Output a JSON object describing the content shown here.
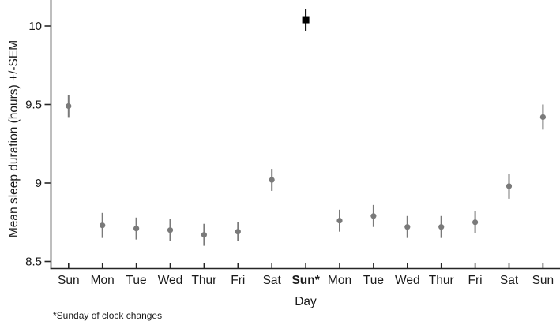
{
  "chart_data": {
    "type": "scatter",
    "title": "",
    "xlabel": "Day",
    "ylabel": "Mean sleep duration (hours) +/-SEM",
    "footnote": "*Sunday of clock changes",
    "y_ticks": [
      8.5,
      9,
      9.5,
      10
    ],
    "y_tick_labels": [
      "8.5",
      "9",
      "9.5",
      "10"
    ],
    "ylim": [
      8.45,
      10.17
    ],
    "grid": false,
    "legend": "none",
    "categories": [
      "Sun",
      "Mon",
      "Tue",
      "Wed",
      "Thur",
      "Fri",
      "Sat",
      "Sun*",
      "Mon",
      "Tue",
      "Wed",
      "Thur",
      "Fri",
      "Sat",
      "Sun"
    ],
    "series": [
      {
        "name": "Mean sleep duration +/- SEM",
        "points": [
          {
            "day": "Sun",
            "mean": 9.49,
            "sem": 0.07,
            "highlight": false
          },
          {
            "day": "Mon",
            "mean": 8.73,
            "sem": 0.08,
            "highlight": false
          },
          {
            "day": "Tue",
            "mean": 8.71,
            "sem": 0.07,
            "highlight": false
          },
          {
            "day": "Wed",
            "mean": 8.7,
            "sem": 0.07,
            "highlight": false
          },
          {
            "day": "Thur",
            "mean": 8.67,
            "sem": 0.07,
            "highlight": false
          },
          {
            "day": "Fri",
            "mean": 8.69,
            "sem": 0.06,
            "highlight": false
          },
          {
            "day": "Sat",
            "mean": 9.02,
            "sem": 0.07,
            "highlight": false
          },
          {
            "day": "Sun*",
            "mean": 10.04,
            "sem": 0.07,
            "highlight": true
          },
          {
            "day": "Mon",
            "mean": 8.76,
            "sem": 0.07,
            "highlight": false
          },
          {
            "day": "Tue",
            "mean": 8.79,
            "sem": 0.07,
            "highlight": false
          },
          {
            "day": "Wed",
            "mean": 8.72,
            "sem": 0.07,
            "highlight": false
          },
          {
            "day": "Thur",
            "mean": 8.72,
            "sem": 0.07,
            "highlight": false
          },
          {
            "day": "Fri",
            "mean": 8.75,
            "sem": 0.07,
            "highlight": false
          },
          {
            "day": "Sat",
            "mean": 8.98,
            "sem": 0.08,
            "highlight": false
          },
          {
            "day": "Sun",
            "mean": 9.42,
            "sem": 0.08,
            "highlight": false
          }
        ]
      }
    ],
    "markers": {
      "normal": {
        "shape": "circle",
        "color": "#7a7a7a"
      },
      "highlight": {
        "shape": "square",
        "color": "#000000"
      }
    },
    "colors": {
      "point": "#7a7a7a",
      "error_bar": "#7a7a7a",
      "highlight": "#000000",
      "axis": "#262626",
      "text": "#1a1a1a",
      "background": "#ffffff"
    }
  }
}
